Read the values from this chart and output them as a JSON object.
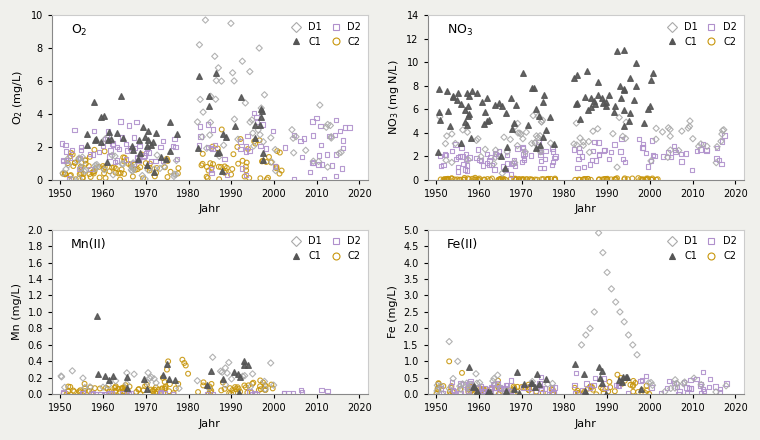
{
  "panels": [
    {
      "title": "O$_2$",
      "ylabel": "O$_2$ (mg/L)",
      "ylim": [
        0,
        10
      ],
      "yticks": [
        0,
        2,
        4,
        6,
        8,
        10
      ]
    },
    {
      "title": "NO$_3$",
      "ylabel": "NO$_3$ (mg N/L)",
      "ylim": [
        0,
        14
      ],
      "yticks": [
        0,
        2,
        4,
        6,
        8,
        10,
        12,
        14
      ]
    },
    {
      "title": "Mn(II)",
      "ylabel": "Mn (mg/L)",
      "ylim": [
        0,
        2
      ],
      "yticks": [
        0,
        0.2,
        0.4,
        0.6,
        0.8,
        1.0,
        1.2,
        1.4,
        1.6,
        1.8,
        2.0
      ]
    },
    {
      "title": "Fe(II)",
      "ylabel": "Fe (mg/L)",
      "ylim": [
        0,
        5
      ],
      "yticks": [
        0,
        0.5,
        1.0,
        1.5,
        2.0,
        2.5,
        3.0,
        3.5,
        4.0,
        4.5,
        5.0
      ]
    }
  ],
  "xlim": [
    1948,
    2022
  ],
  "xticks": [
    1950,
    1960,
    1970,
    1980,
    1990,
    2000,
    2010,
    2020
  ],
  "xlabel": "Jahr",
  "color_D1": "#aaaaaa",
  "color_C1": "#555555",
  "color_D2": "#b090cc",
  "color_C2": "#c8960c",
  "bg_color": "#ffffff",
  "fig_bg": "#f0f0ec"
}
